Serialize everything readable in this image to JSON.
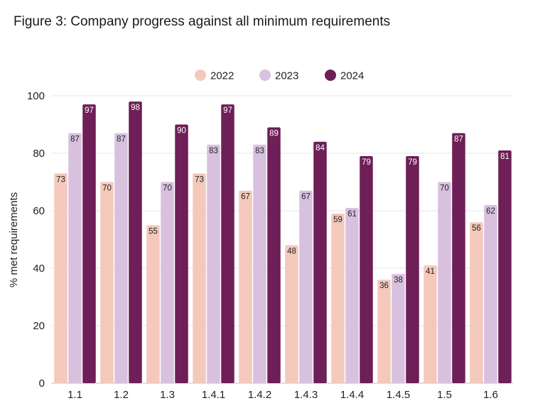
{
  "chart_data": {
    "type": "bar",
    "title": "Figure 3: Company progress against all minimum requirements",
    "xlabel": "",
    "ylabel": "% met requirements",
    "ylim": [
      0,
      100
    ],
    "yticks": [
      0,
      20,
      40,
      60,
      80,
      100
    ],
    "grid": true,
    "legend_position": "top-center",
    "categories": [
      "1.1",
      "1.2",
      "1.3",
      "1.4.1",
      "1.4.2",
      "1.4.3",
      "1.4.4",
      "1.4.5",
      "1.5",
      "1.6"
    ],
    "series": [
      {
        "name": "2022",
        "color": "#f4c9bb",
        "label_color": "#222222",
        "values": [
          73,
          70,
          55,
          73,
          67,
          48,
          59,
          36,
          41,
          56
        ]
      },
      {
        "name": "2023",
        "color": "#d8c0df",
        "label_color": "#222222",
        "values": [
          87,
          87,
          70,
          83,
          83,
          67,
          61,
          38,
          70,
          62
        ]
      },
      {
        "name": "2024",
        "color": "#6e1f57",
        "label_color": "#ffffff",
        "values": [
          97,
          98,
          90,
          97,
          89,
          84,
          79,
          79,
          87,
          81
        ]
      }
    ]
  }
}
